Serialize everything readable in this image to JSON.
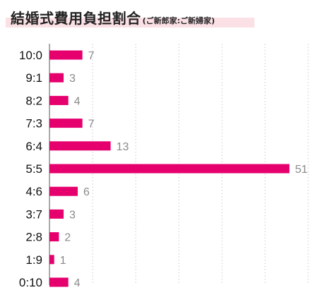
{
  "chart_data": {
    "type": "bar",
    "orientation": "horizontal",
    "title": "結婚式費用負担割合",
    "subtitle": "(ご新郎家:ご新婦家)",
    "categories": [
      "10:0",
      "9:1",
      "8:2",
      "7:3",
      "6:4",
      "5:5",
      "4:6",
      "3:7",
      "2:8",
      "1:9",
      "0:10"
    ],
    "values": [
      7,
      3,
      4,
      7,
      13,
      51,
      6,
      3,
      2,
      1,
      4
    ],
    "xlim": [
      0,
      55
    ],
    "grid": true,
    "bar_color": "#e6006e",
    "grid_color": "#c8c8c8"
  }
}
